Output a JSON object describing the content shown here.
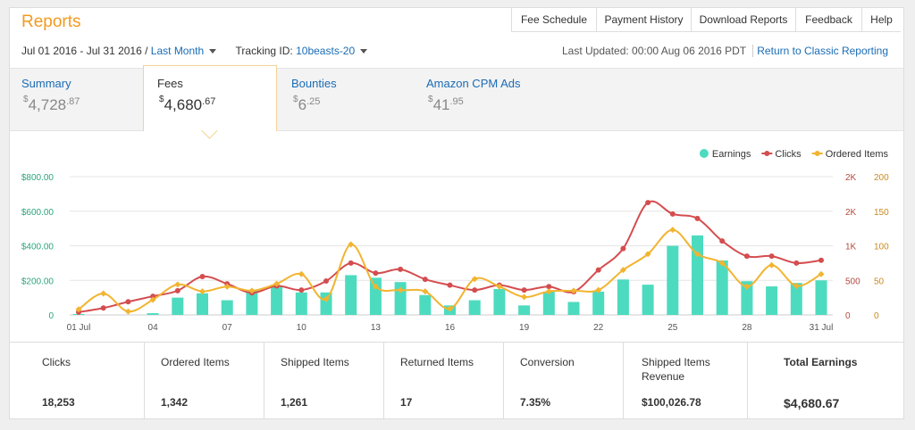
{
  "header": {
    "title": "Reports"
  },
  "nav": [
    "Fee Schedule",
    "Payment History",
    "Download Reports",
    "Feedback",
    "Help"
  ],
  "filters": {
    "range": "Jul 01 2016 - Jul 31 2016",
    "separator": "/",
    "period": "Last Month",
    "tracking_label": "Tracking ID:",
    "tracking_id": "10beasts-20"
  },
  "status": {
    "updated": "Last Updated: 00:00 Aug 06 2016 PDT",
    "link": "Return to Classic Reporting"
  },
  "tabs": [
    {
      "label": "Summary",
      "currency": "$",
      "amount": "4,728",
      "cents": ".87"
    },
    {
      "label": "Fees",
      "currency": "$",
      "amount": "4,680",
      "cents": ".67"
    },
    {
      "label": "Bounties",
      "currency": "$",
      "amount": "6",
      "cents": ".25"
    },
    {
      "label": "Amazon CPM Ads",
      "currency": "$",
      "amount": "41",
      "cents": ".95"
    }
  ],
  "chart_data": {
    "type": "combo",
    "categories": [
      "01 Jul",
      null,
      null,
      "04",
      null,
      null,
      "07",
      null,
      null,
      "10",
      null,
      null,
      "13",
      null,
      null,
      "16",
      null,
      null,
      "19",
      null,
      null,
      "22",
      null,
      null,
      "25",
      null,
      null,
      "28",
      null,
      null,
      "31 Jul"
    ],
    "series": [
      {
        "name": "Earnings",
        "type": "bar",
        "color": "#4ddbbf",
        "axis": "y",
        "values": [
          5,
          0,
          0,
          10,
          100,
          125,
          85,
          145,
          170,
          130,
          130,
          230,
          215,
          190,
          115,
          55,
          85,
          150,
          55,
          135,
          75,
          135,
          205,
          175,
          400,
          460,
          315,
          195,
          165,
          185,
          200
        ]
      },
      {
        "name": "Clicks",
        "type": "line",
        "color": "#d44d4f",
        "axis": "y2",
        "values": [
          40,
          100,
          190,
          270,
          350,
          555,
          450,
          320,
          420,
          360,
          490,
          750,
          605,
          660,
          515,
          430,
          360,
          430,
          360,
          410,
          335,
          650,
          960,
          1625,
          1460,
          1395,
          1070,
          850,
          850,
          750,
          790
        ]
      },
      {
        "name": "Ordered Items",
        "type": "line",
        "color": "#f2b430",
        "axis": "y3",
        "values": [
          8,
          31,
          5,
          22,
          44,
          34,
          41,
          35,
          45,
          59,
          23,
          102,
          41,
          36,
          34,
          9,
          52,
          41,
          26,
          34,
          35,
          36,
          65,
          88,
          123,
          88,
          75,
          41,
          72,
          42,
          59
        ]
      }
    ],
    "ylim": [
      0,
      800
    ],
    "yticks": [
      0,
      {
        "value": 200,
        "label": "$200.00"
      },
      {
        "value": 400,
        "label": "$400.00"
      },
      {
        "value": 600,
        "label": "$600.00"
      },
      {
        "value": 800,
        "label": "$800.00"
      }
    ],
    "y2lim": [
      0,
      2000
    ],
    "y2ticks": [
      0,
      500,
      {
        "value": 1000,
        "label": "1K"
      },
      {
        "value": 1500,
        "label": "2K"
      },
      {
        "value": 2000,
        "label": "2K"
      }
    ],
    "y3lim": [
      0,
      200
    ],
    "y3ticks": [
      0,
      50,
      100,
      150,
      200
    ],
    "axis_colors": {
      "y": "#2aa57a",
      "y2": "#b44a3c",
      "y3": "#c98b1f"
    },
    "grid": true,
    "legend": "top-right"
  },
  "stats": [
    {
      "label": "Clicks",
      "value": "18,253"
    },
    {
      "label": "Ordered Items",
      "value": "1,342"
    },
    {
      "label": "Shipped Items",
      "value": "1,261"
    },
    {
      "label": "Returned Items",
      "value": "17"
    },
    {
      "label": "Conversion",
      "value": "7.35%"
    },
    {
      "label": "Shipped Items Revenue",
      "value": "$100,026.78"
    },
    {
      "label": "Total Earnings",
      "value": "$4,680.67"
    }
  ]
}
